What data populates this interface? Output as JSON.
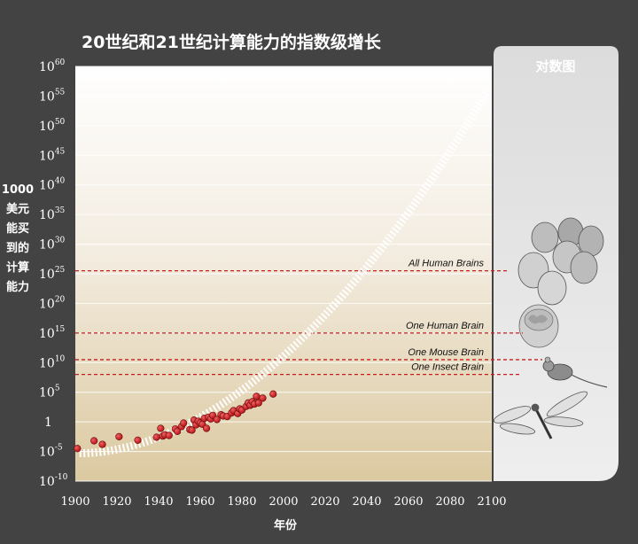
{
  "chart_data": {
    "type": "scatter",
    "title": "20世纪和21世纪计算能力的指数级增长",
    "ylabel": [
      "1000",
      "美元",
      "能买",
      "到的",
      "计算",
      "能力"
    ],
    "xlabel": "年份",
    "y_scale": "log10",
    "xlim": [
      1900,
      2100
    ],
    "ylim_exponent": [
      -10,
      60
    ],
    "x_ticks": [
      "1900",
      "1920",
      "1940",
      "1960",
      "1980",
      "2000",
      "2020",
      "2040",
      "2060",
      "2080",
      "2100"
    ],
    "y_ticks": [
      {
        "exp": -10,
        "base": "10",
        "sup": "-10"
      },
      {
        "exp": -5,
        "base": "10",
        "sup": "-5"
      },
      {
        "exp": 0,
        "base": "1",
        "sup": ""
      },
      {
        "exp": 5,
        "base": "10",
        "sup": "5"
      },
      {
        "exp": 10,
        "base": "10",
        "sup": "10"
      },
      {
        "exp": 15,
        "base": "10",
        "sup": "15"
      },
      {
        "exp": 20,
        "base": "10",
        "sup": "20"
      },
      {
        "exp": 25,
        "base": "10",
        "sup": "25"
      },
      {
        "exp": 30,
        "base": "10",
        "sup": "30"
      },
      {
        "exp": 35,
        "base": "10",
        "sup": "35"
      },
      {
        "exp": 40,
        "base": "10",
        "sup": "40"
      },
      {
        "exp": 45,
        "base": "10",
        "sup": "45"
      },
      {
        "exp": 50,
        "base": "10",
        "sup": "50"
      },
      {
        "exp": 55,
        "base": "10",
        "sup": "55"
      },
      {
        "exp": 60,
        "base": "10",
        "sup": "60"
      }
    ],
    "grid": true,
    "reference_lines": [
      {
        "label": "All Human Brains",
        "exp": 25.5
      },
      {
        "label": "One Human Brain",
        "exp": 15
      },
      {
        "label": "One Mouse Brain",
        "exp": 10.5
      },
      {
        "label": "One Insect Brain",
        "exp": 8
      }
    ],
    "points": [
      {
        "year": 1901,
        "exp": -4.5
      },
      {
        "year": 1909,
        "exp": -3.2
      },
      {
        "year": 1913,
        "exp": -3.8
      },
      {
        "year": 1921,
        "exp": -2.5
      },
      {
        "year": 1930,
        "exp": -3.1
      },
      {
        "year": 1939,
        "exp": -2.6
      },
      {
        "year": 1941,
        "exp": -1.1
      },
      {
        "year": 1942,
        "exp": -2.4
      },
      {
        "year": 1943,
        "exp": -2.2
      },
      {
        "year": 1945,
        "exp": -2.3
      },
      {
        "year": 1948,
        "exp": -1.2
      },
      {
        "year": 1949,
        "exp": -1.6
      },
      {
        "year": 1951,
        "exp": -0.8
      },
      {
        "year": 1952,
        "exp": -0.2
      },
      {
        "year": 1955,
        "exp": -1.3
      },
      {
        "year": 1956,
        "exp": -1.4
      },
      {
        "year": 1957,
        "exp": 0.3
      },
      {
        "year": 1958,
        "exp": -0.5
      },
      {
        "year": 1959,
        "exp": 0.1
      },
      {
        "year": 1960,
        "exp": -0.2
      },
      {
        "year": 1961,
        "exp": -0.4
      },
      {
        "year": 1962,
        "exp": 0.6
      },
      {
        "year": 1963,
        "exp": -1.1
      },
      {
        "year": 1964,
        "exp": 0.8
      },
      {
        "year": 1965,
        "exp": 0.5
      },
      {
        "year": 1966,
        "exp": 1.1
      },
      {
        "year": 1968,
        "exp": 0.4
      },
      {
        "year": 1970,
        "exp": 1.2
      },
      {
        "year": 1971,
        "exp": 1.0
      },
      {
        "year": 1973,
        "exp": 0.9
      },
      {
        "year": 1975,
        "exp": 1.5
      },
      {
        "year": 1976,
        "exp": 1.9
      },
      {
        "year": 1978,
        "exp": 1.4
      },
      {
        "year": 1979,
        "exp": 2.2
      },
      {
        "year": 1980,
        "exp": 2.0
      },
      {
        "year": 1982,
        "exp": 2.6
      },
      {
        "year": 1983,
        "exp": 3.2
      },
      {
        "year": 1984,
        "exp": 2.8
      },
      {
        "year": 1985,
        "exp": 3.4
      },
      {
        "year": 1986,
        "exp": 3.0
      },
      {
        "year": 1987,
        "exp": 4.3
      },
      {
        "year": 1988,
        "exp": 3.2
      },
      {
        "year": 1990,
        "exp": 4.0
      },
      {
        "year": 1995,
        "exp": 4.7
      }
    ],
    "trend": {
      "start_year": 1902,
      "end_year": 2098,
      "start_exp": -5.3,
      "end_exp": 56
    }
  },
  "side_panel": {
    "title": "对数图"
  },
  "colors": {
    "background": "#434343",
    "plot_top": "#ffffff",
    "plot_bottom": "#dbc9a0",
    "point": "#c8191e",
    "reference_line": "#c81e1e",
    "panel": "#e6e6e6"
  }
}
